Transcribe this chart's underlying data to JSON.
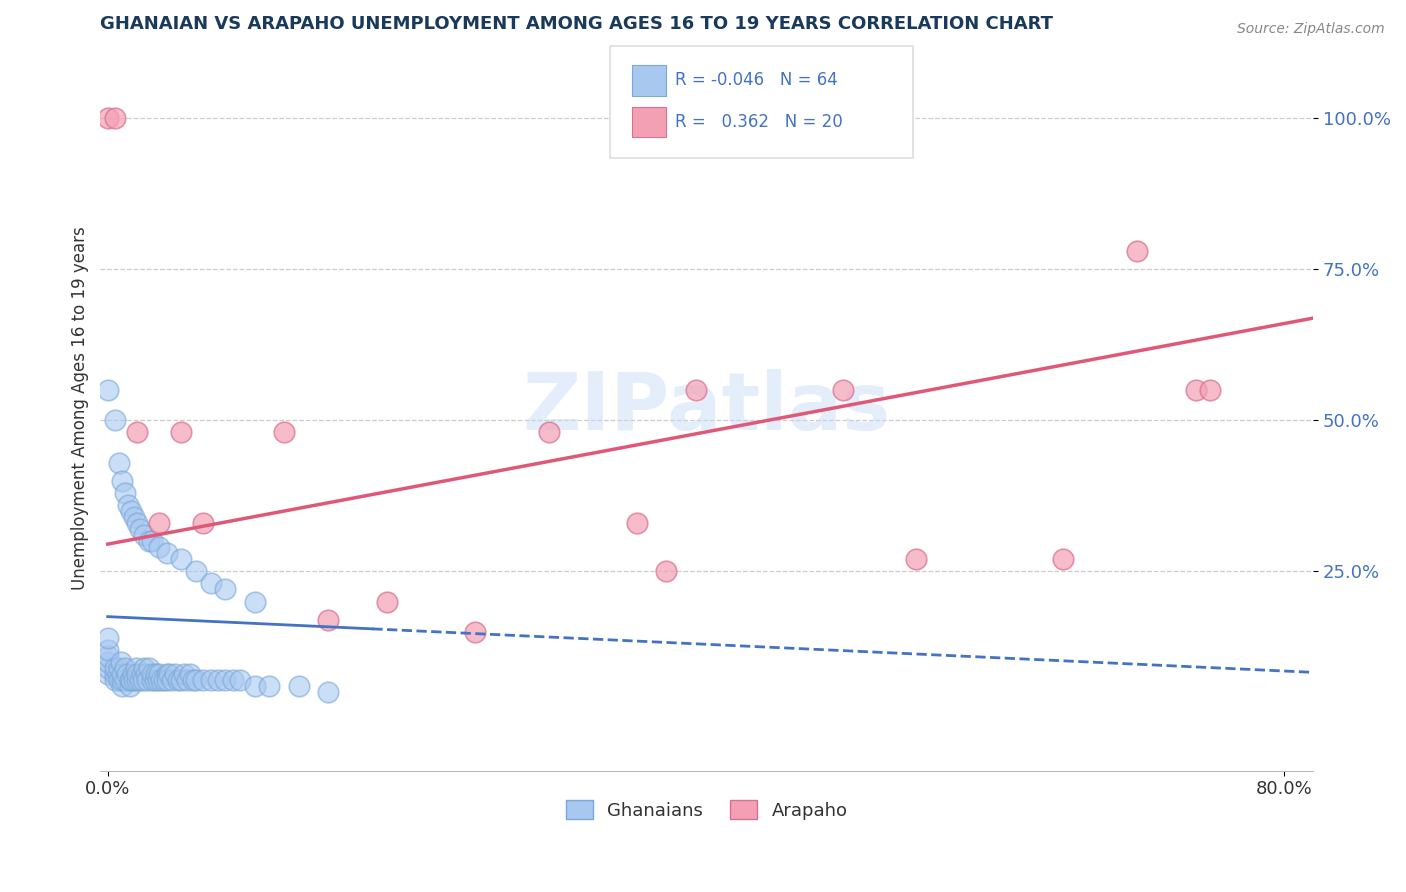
{
  "title": "GHANAIAN VS ARAPAHO UNEMPLOYMENT AMONG AGES 16 TO 19 YEARS CORRELATION CHART",
  "source": "Source: ZipAtlas.com",
  "ylabel": "Unemployment Among Ages 16 to 19 years",
  "xlim": [
    -0.005,
    0.82
  ],
  "ylim": [
    -0.08,
    1.12
  ],
  "xtick_pos": [
    0.0,
    0.8
  ],
  "xtick_labels": [
    "0.0%",
    "80.0%"
  ],
  "ytick_pos": [
    0.25,
    0.5,
    0.75,
    1.0
  ],
  "ytick_labels": [
    "25.0%",
    "50.0%",
    "75.0%",
    "100.0%"
  ],
  "ghanaian_color": "#a8c8f0",
  "ghanaian_edge": "#7aa8d8",
  "arapaho_color": "#f4a0b4",
  "arapaho_edge": "#d87090",
  "ghanaian_line_color": "#4472c4",
  "arapaho_line_color": "#e05878",
  "watermark": "ZIPatlas",
  "title_color": "#1a3a5c",
  "source_color": "#888888",
  "ylabel_color": "#333333",
  "tick_color": "#4472c4",
  "grid_color": "#cccccc",
  "legend_box_color": "#dddddd",
  "ghanaian_x": [
    0.0,
    0.0,
    0.0,
    0.0,
    0.0,
    0.0,
    0.005,
    0.005,
    0.005,
    0.007,
    0.008,
    0.008,
    0.009,
    0.01,
    0.01,
    0.01,
    0.012,
    0.012,
    0.013,
    0.015,
    0.015,
    0.016,
    0.017,
    0.018,
    0.019,
    0.02,
    0.02,
    0.022,
    0.023,
    0.024,
    0.025,
    0.026,
    0.027,
    0.028,
    0.03,
    0.03,
    0.032,
    0.033,
    0.034,
    0.035,
    0.036,
    0.038,
    0.04,
    0.04,
    0.042,
    0.044,
    0.046,
    0.048,
    0.05,
    0.052,
    0.054,
    0.056,
    0.058,
    0.06,
    0.065,
    0.07,
    0.075,
    0.08,
    0.085,
    0.09,
    0.1,
    0.11,
    0.13,
    0.15
  ],
  "ghanaian_y": [
    0.08,
    0.09,
    0.1,
    0.11,
    0.12,
    0.14,
    0.07,
    0.08,
    0.09,
    0.08,
    0.07,
    0.09,
    0.1,
    0.06,
    0.07,
    0.08,
    0.07,
    0.09,
    0.08,
    0.06,
    0.07,
    0.07,
    0.08,
    0.07,
    0.09,
    0.07,
    0.08,
    0.07,
    0.08,
    0.07,
    0.09,
    0.08,
    0.07,
    0.09,
    0.07,
    0.08,
    0.07,
    0.08,
    0.07,
    0.08,
    0.07,
    0.07,
    0.08,
    0.07,
    0.08,
    0.07,
    0.08,
    0.07,
    0.07,
    0.08,
    0.07,
    0.08,
    0.07,
    0.07,
    0.07,
    0.07,
    0.07,
    0.07,
    0.07,
    0.07,
    0.06,
    0.06,
    0.06,
    0.05
  ],
  "ghanaian_x_hi": [
    0.0,
    0.005,
    0.008,
    0.01,
    0.012,
    0.014,
    0.016,
    0.018,
    0.02,
    0.022,
    0.025,
    0.028,
    0.03,
    0.035,
    0.04,
    0.05,
    0.06,
    0.07,
    0.08,
    0.1
  ],
  "ghanaian_y_hi": [
    0.55,
    0.5,
    0.43,
    0.4,
    0.38,
    0.36,
    0.35,
    0.34,
    0.33,
    0.32,
    0.31,
    0.3,
    0.3,
    0.29,
    0.28,
    0.27,
    0.25,
    0.23,
    0.22,
    0.2
  ],
  "arapaho_x": [
    0.0,
    0.005,
    0.02,
    0.035,
    0.05,
    0.065,
    0.12,
    0.15,
    0.19,
    0.25,
    0.3,
    0.36,
    0.38,
    0.4,
    0.5,
    0.55,
    0.65,
    0.7,
    0.74,
    0.75
  ],
  "arapaho_y": [
    1.0,
    1.0,
    0.48,
    0.33,
    0.48,
    0.33,
    0.48,
    0.17,
    0.2,
    0.15,
    0.48,
    0.33,
    0.25,
    0.55,
    0.55,
    0.27,
    0.27,
    0.78,
    0.55,
    0.55
  ],
  "g_line_x": [
    0.0,
    0.8
  ],
  "g_line_y": [
    0.175,
    0.085
  ],
  "a_line_x": [
    0.0,
    0.8
  ],
  "a_line_y": [
    0.295,
    0.66
  ]
}
